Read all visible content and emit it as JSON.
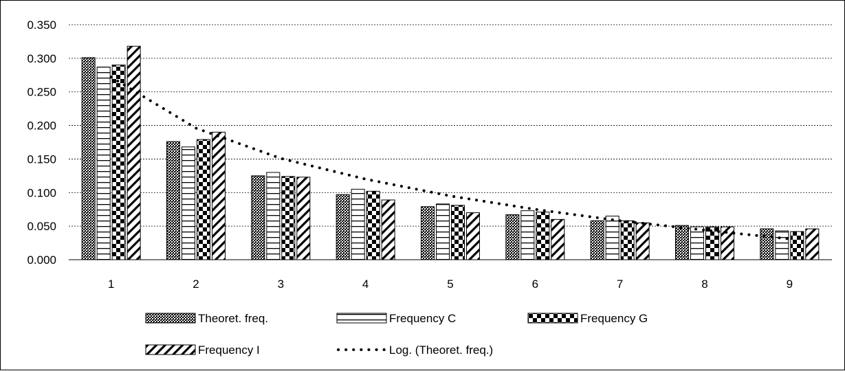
{
  "chart_data": {
    "type": "bar",
    "title": "",
    "xlabel": "",
    "ylabel": "",
    "categories": [
      "1",
      "2",
      "3",
      "4",
      "5",
      "6",
      "7",
      "8",
      "9"
    ],
    "ylim": [
      0,
      0.35
    ],
    "yticks": [
      "0.000",
      "0.050",
      "0.100",
      "0.150",
      "0.200",
      "0.250",
      "0.300",
      "0.350"
    ],
    "grid": "horizontal dashed",
    "legend_position": "bottom",
    "series": [
      {
        "name": "Theoret. freq.",
        "pattern": "dots",
        "values": [
          0.301,
          0.176,
          0.125,
          0.097,
          0.079,
          0.067,
          0.058,
          0.051,
          0.046
        ]
      },
      {
        "name": "Frequency C",
        "pattern": "horizontal-lines",
        "values": [
          0.287,
          0.168,
          0.13,
          0.105,
          0.083,
          0.073,
          0.065,
          0.049,
          0.043
        ]
      },
      {
        "name": "Frequency G",
        "pattern": "checkerboard",
        "values": [
          0.29,
          0.179,
          0.124,
          0.102,
          0.081,
          0.071,
          0.058,
          0.049,
          0.042
        ]
      },
      {
        "name": "Frequency I",
        "pattern": "diagonal-stripes",
        "values": [
          0.318,
          0.19,
          0.123,
          0.089,
          0.07,
          0.06,
          0.055,
          0.049,
          0.046
        ]
      }
    ],
    "trendline": {
      "name": "Log. (Theoret. freq.)",
      "type": "logarithmic",
      "of_series": "Theoret. freq.",
      "values": [
        0.272,
        0.196,
        0.151,
        0.12,
        0.095,
        0.075,
        0.058,
        0.044,
        0.031
      ]
    }
  }
}
